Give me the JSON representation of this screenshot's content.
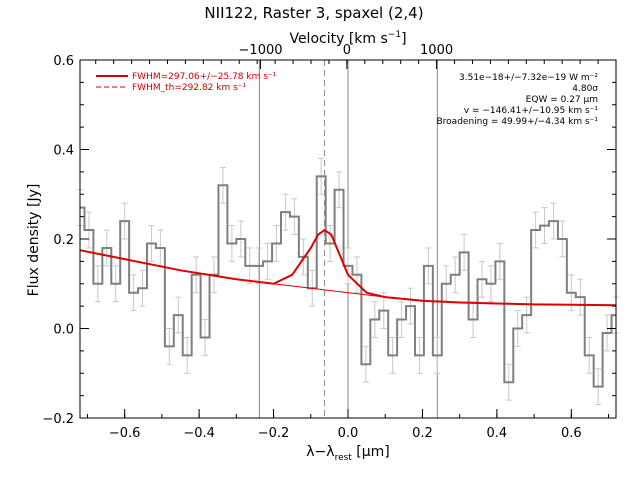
{
  "chart_data": {
    "type": "line",
    "title": "NII122, Raster 3, spaxel (2,4)",
    "xlabel": "λ−λ",
    "xlabel_sub": "rest",
    "xlabel_unit": "[μm]",
    "ylabel": "Flux density [Jy]",
    "top_axis_label": "Velocity [km s",
    "top_axis_label_sup": "−1",
    "top_axis_label_end": "]",
    "xlim": [
      -0.72,
      0.72
    ],
    "ylim": [
      -0.2,
      0.6
    ],
    "top_axis_ticks": [
      {
        "x": -0.235,
        "label": "−1000"
      },
      {
        "x": -0.003,
        "label": "0"
      },
      {
        "x": 0.238,
        "label": "1000"
      }
    ],
    "x_ticks": [
      {
        "v": -0.6,
        "label": "−0.6"
      },
      {
        "v": -0.4,
        "label": "−0.4"
      },
      {
        "v": -0.2,
        "label": "−0.2"
      },
      {
        "v": 0.0,
        "label": "0.0"
      },
      {
        "v": 0.2,
        "label": "0.2"
      },
      {
        "v": 0.4,
        "label": "0.4"
      },
      {
        "v": 0.6,
        "label": "0.6"
      }
    ],
    "y_ticks": [
      {
        "v": -0.2,
        "label": "−0.2"
      },
      {
        "v": 0.0,
        "label": "0.0"
      },
      {
        "v": 0.2,
        "label": "0.2"
      },
      {
        "v": 0.4,
        "label": "0.4"
      },
      {
        "v": 0.6,
        "label": "0.6"
      }
    ],
    "vertical_lines": [
      {
        "x": -0.238,
        "style": "solid"
      },
      {
        "x": -0.063,
        "style": "dashed"
      },
      {
        "x": 0.0,
        "style": "solid"
      },
      {
        "x": 0.24,
        "style": "solid"
      }
    ],
    "spectrum": {
      "x": [
        -0.72,
        -0.696,
        -0.672,
        -0.648,
        -0.624,
        -0.6,
        -0.576,
        -0.552,
        -0.528,
        -0.504,
        -0.48,
        -0.456,
        -0.432,
        -0.408,
        -0.384,
        -0.36,
        -0.336,
        -0.312,
        -0.288,
        -0.264,
        -0.24,
        -0.216,
        -0.192,
        -0.168,
        -0.144,
        -0.12,
        -0.096,
        -0.072,
        -0.048,
        -0.024,
        0.0,
        0.024,
        0.048,
        0.072,
        0.096,
        0.12,
        0.144,
        0.168,
        0.192,
        0.216,
        0.24,
        0.264,
        0.288,
        0.312,
        0.336,
        0.36,
        0.384,
        0.408,
        0.432,
        0.456,
        0.48,
        0.504,
        0.528,
        0.552,
        0.576,
        0.6,
        0.624,
        0.648,
        0.672,
        0.696,
        0.72
      ],
      "y": [
        0.27,
        0.22,
        0.1,
        0.18,
        0.1,
        0.24,
        0.08,
        0.09,
        0.19,
        0.18,
        -0.04,
        0.03,
        -0.06,
        0.12,
        -0.02,
        0.12,
        0.32,
        0.19,
        0.2,
        0.14,
        0.14,
        0.15,
        0.19,
        0.26,
        0.25,
        0.16,
        0.09,
        0.34,
        0.19,
        0.31,
        0.14,
        0.12,
        -0.08,
        0.02,
        0.04,
        -0.06,
        0.02,
        0.05,
        -0.06,
        0.14,
        -0.06,
        0.1,
        0.12,
        0.17,
        0.02,
        0.11,
        0.1,
        0.15,
        -0.12,
        0.0,
        0.03,
        0.22,
        0.23,
        0.24,
        0.2,
        0.08,
        0.07,
        -0.06,
        -0.13,
        -0.01,
        0.03
      ],
      "error": 0.04
    },
    "series": [
      {
        "name": "FWHM=297.06+/−25.78 km s⁻¹",
        "style": "solid",
        "x": [
          -0.72,
          -0.6,
          -0.45,
          -0.3,
          -0.2,
          -0.15,
          -0.1,
          -0.08,
          -0.063,
          -0.045,
          -0.02,
          0.0,
          0.05,
          0.1,
          0.2,
          0.3,
          0.4,
          0.5,
          0.6,
          0.72
        ],
        "y": [
          0.175,
          0.155,
          0.13,
          0.11,
          0.1,
          0.12,
          0.18,
          0.21,
          0.22,
          0.21,
          0.16,
          0.12,
          0.08,
          0.07,
          0.062,
          0.058,
          0.056,
          0.054,
          0.053,
          0.052
        ]
      },
      {
        "name": "FWHM_th=292.82 km s⁻¹",
        "style": "dashed"
      }
    ],
    "annotations": [
      "3.51e−18+/−7.32e−19 W m⁻²",
      "4.80σ",
      "EQW = 0.27 μm",
      "v = −146.41+/−10.95 km s⁻¹",
      "Broadening = 49.99+/−4.34 km s⁻¹"
    ],
    "colors": {
      "spectrum": "#7f7f7f",
      "errorbar": "#c8c8c8",
      "fit": "#dd0000",
      "axes": "#000000"
    }
  }
}
